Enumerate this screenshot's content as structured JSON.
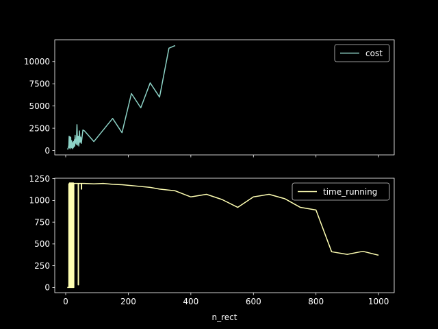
{
  "chart_data": [
    {
      "type": "line",
      "xlabel": "",
      "ylabel": "",
      "xlim": [
        -35,
        1050
      ],
      "ylim": [
        -500,
        12450
      ],
      "xticks": [
        0,
        200,
        400,
        600,
        800,
        1000
      ],
      "show_xtick_labels": false,
      "yticks": [
        0,
        2500,
        5000,
        7500,
        10000
      ],
      "ytick_labels": [
        "0",
        "2500",
        "5000",
        "7500",
        "10000"
      ],
      "grid": false,
      "legend_position": "top-right",
      "series": [
        {
          "name": "cost",
          "color": "#8dd3c7",
          "x": [
            5,
            7,
            9,
            10,
            11,
            12,
            13,
            14,
            15,
            16,
            17,
            18,
            19,
            20,
            21,
            22,
            23,
            24,
            25,
            26,
            27,
            28,
            29,
            30,
            32,
            34,
            36,
            38,
            40,
            42,
            44,
            46,
            48,
            50,
            55,
            60,
            90,
            150,
            180,
            210,
            240,
            270,
            300,
            330,
            350
          ],
          "y": [
            200,
            150,
            400,
            600,
            1600,
            300,
            1500,
            200,
            700,
            1500,
            600,
            300,
            1100,
            300,
            900,
            200,
            800,
            300,
            1000,
            400,
            700,
            1200,
            500,
            1700,
            900,
            700,
            2900,
            600,
            1600,
            500,
            2200,
            900,
            1500,
            800,
            2300,
            2200,
            1000,
            3600,
            2000,
            6400,
            4800,
            7600,
            6000,
            11500,
            11800
          ]
        }
      ]
    },
    {
      "type": "line",
      "xlabel": "n_rect",
      "ylabel": "",
      "xlim": [
        -35,
        1050
      ],
      "ylim": [
        -60,
        1255
      ],
      "xticks": [
        0,
        200,
        400,
        600,
        800,
        1000
      ],
      "xtick_labels": [
        "0",
        "200",
        "400",
        "600",
        "800",
        "1000"
      ],
      "yticks": [
        0,
        250,
        500,
        750,
        1000,
        1250
      ],
      "ytick_labels": [
        "0",
        "250",
        "500",
        "750",
        "1000",
        "1250"
      ],
      "grid": false,
      "legend_position": "top-right",
      "series": [
        {
          "name": "time_running",
          "color": "#ffffb3",
          "x": [
            5,
            10,
            10,
            11,
            11,
            12,
            12,
            13,
            13,
            14,
            14,
            15,
            15,
            16,
            16,
            17,
            17,
            18,
            18,
            19,
            19,
            20,
            20,
            21,
            21,
            22,
            22,
            23,
            23,
            24,
            24,
            25,
            25,
            26,
            26,
            28,
            30,
            35,
            40,
            40,
            41,
            41,
            50,
            50,
            51,
            51,
            60,
            90,
            120,
            150,
            180,
            210,
            240,
            270,
            300,
            350,
            400,
            450,
            500,
            550,
            600,
            650,
            700,
            750,
            800,
            850,
            900,
            950,
            1000
          ],
          "y": [
            0,
            0,
            1190,
            1190,
            0,
            0,
            1200,
            1200,
            0,
            0,
            1200,
            1200,
            0,
            0,
            1200,
            1200,
            0,
            0,
            1200,
            1200,
            0,
            0,
            1200,
            1200,
            0,
            0,
            1200,
            1200,
            0,
            0,
            1200,
            1200,
            0,
            0,
            1195,
            1195,
            1195,
            1195,
            1195,
            30,
            30,
            1195,
            1195,
            1130,
            1130,
            1195,
            1195,
            1190,
            1195,
            1185,
            1180,
            1170,
            1160,
            1150,
            1130,
            1110,
            1040,
            1070,
            1010,
            920,
            1040,
            1070,
            1020,
            920,
            890,
            410,
            380,
            415,
            370
          ]
        }
      ]
    }
  ]
}
